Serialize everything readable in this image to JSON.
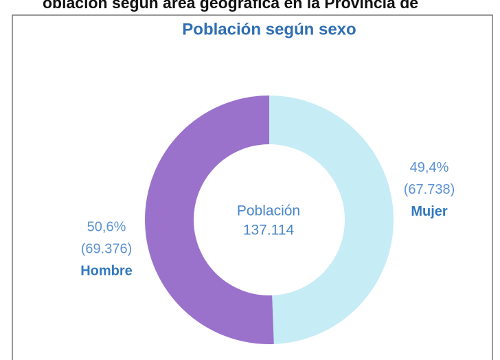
{
  "header": "oblación según área geográfica en la Provincia de",
  "chart_data": {
    "type": "pie",
    "title": "Población según sexo",
    "categories": [
      "Hombre",
      "Mujer"
    ],
    "values": [
      50.6,
      49.4
    ],
    "value_labels": [
      "50,6%",
      "49,4%"
    ],
    "counts": [
      69376,
      67738
    ],
    "count_labels": [
      "(69.376)",
      "(67.738)"
    ],
    "colors": [
      "#9a72cc",
      "#c6ecf6"
    ],
    "center_label": "Población",
    "total": 137114,
    "total_label": "137.114",
    "donut": true
  }
}
